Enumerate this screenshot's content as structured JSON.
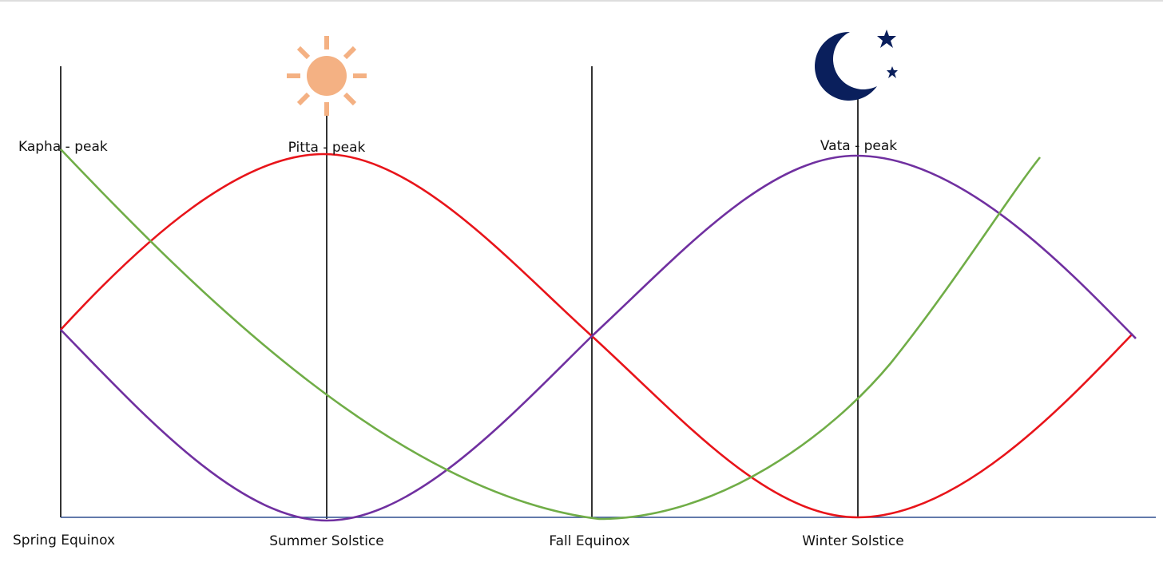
{
  "peaks": [
    "Kapha - peak",
    "Pitta - peak",
    "Vata - peak"
  ],
  "seasons": [
    "Spring Equinox",
    "Summer Solstice",
    "Fall Equinox",
    "Winter Solstice"
  ]
}
